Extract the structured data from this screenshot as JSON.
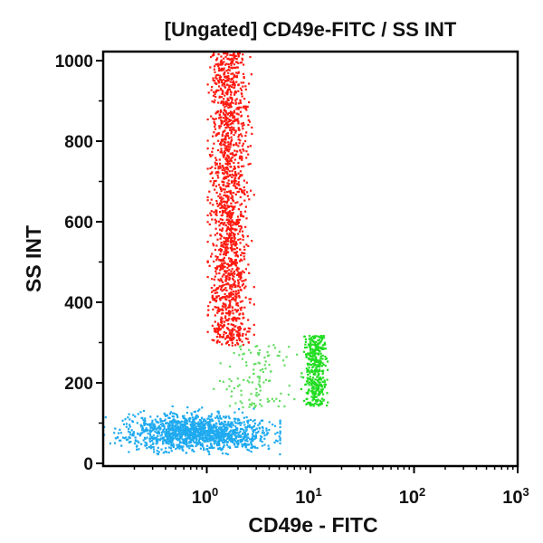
{
  "chart_data": {
    "type": "scatter",
    "title": "[Ungated] CD49e-FITC / SS INT",
    "xlabel": "CD49e - FITC",
    "ylabel": "SS INT",
    "x_scale": "log",
    "xlim": [
      0.1,
      1000
    ],
    "ylim": [
      0,
      1024
    ],
    "x_ticks": [
      {
        "value": 1,
        "base": "10",
        "exp": "0"
      },
      {
        "value": 10,
        "base": "10",
        "exp": "1"
      },
      {
        "value": 100,
        "base": "10",
        "exp": "2"
      },
      {
        "value": 1000,
        "base": "10",
        "exp": "3"
      }
    ],
    "y_ticks": [
      {
        "value": 0,
        "label": "0"
      },
      {
        "value": 200,
        "label": "200"
      },
      {
        "value": 400,
        "label": "400"
      },
      {
        "value": 600,
        "label": "600"
      },
      {
        "value": 800,
        "label": "800"
      },
      {
        "value": 1000,
        "label": "1000"
      }
    ],
    "grid": false,
    "populations": [
      {
        "color": "#ff1a10",
        "x_center": 1.6,
        "x_range": [
          1.0,
          2.8
        ],
        "y_range": [
          295,
          1024
        ],
        "count": 1600
      },
      {
        "color": "#1eaaf0",
        "x_center": 0.8,
        "x_range": [
          0.1,
          5
        ],
        "y_center": 80,
        "y_range": [
          25,
          160
        ],
        "count": 1400
      },
      {
        "color": "#22dd22",
        "x_center": 11,
        "x_range": [
          8,
          15
        ],
        "y_range": [
          145,
          320
        ],
        "count": 380
      },
      {
        "color": "#66dd66",
        "x_center": 3,
        "x_range": [
          1,
          8
        ],
        "y_range": [
          140,
          300
        ],
        "count": 120
      }
    ]
  }
}
